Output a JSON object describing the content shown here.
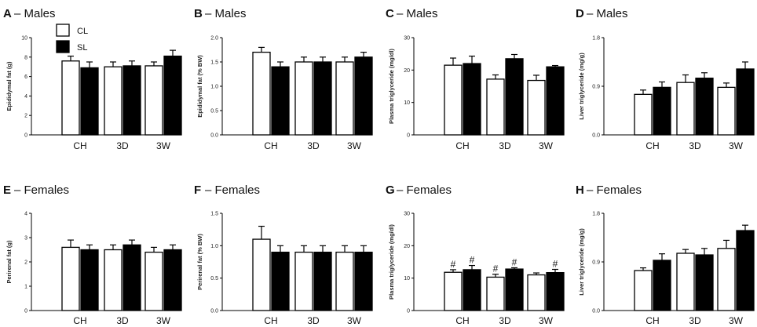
{
  "figure": {
    "legend": {
      "cl": "CL",
      "sl": "SL"
    },
    "colors": {
      "cl": "#ffffff",
      "sl": "#000000",
      "axis": "#000000"
    }
  },
  "chart_data": [
    {
      "type": "bar",
      "panel": "A",
      "title": "– Males",
      "ylabel": "Epididymal fat (g)",
      "ylim": [
        0,
        10
      ],
      "yticks": [
        "0",
        "2",
        "4",
        "6",
        "8",
        "10"
      ],
      "categories": [
        "CH",
        "3D",
        "3W"
      ],
      "series": [
        {
          "name": "CL",
          "values": [
            7.6,
            7.0,
            7.1
          ],
          "errors": [
            0.5,
            0.5,
            0.4
          ]
        },
        {
          "name": "SL",
          "values": [
            6.9,
            7.1,
            8.1
          ],
          "errors": [
            0.6,
            0.5,
            0.6
          ]
        }
      ],
      "significance": []
    },
    {
      "type": "bar",
      "panel": "B",
      "title": "– Males",
      "ylabel": "Epididymal fat (% BW)",
      "ylim": [
        0,
        2.0
      ],
      "yticks": [
        "0.0",
        "0.5",
        "1.0",
        "1.5",
        "2.0"
      ],
      "categories": [
        "CH",
        "3D",
        "3W"
      ],
      "series": [
        {
          "name": "CL",
          "values": [
            1.7,
            1.5,
            1.5
          ],
          "errors": [
            0.1,
            0.1,
            0.1
          ]
        },
        {
          "name": "SL",
          "values": [
            1.4,
            1.5,
            1.6
          ],
          "errors": [
            0.1,
            0.1,
            0.1
          ]
        }
      ],
      "significance": []
    },
    {
      "type": "bar",
      "panel": "C",
      "title": "– Males",
      "ylabel": "Plasma triglyceride (mg/dl)",
      "ylim": [
        0,
        30
      ],
      "yticks": [
        "0",
        "10",
        "20",
        "30"
      ],
      "categories": [
        "CH",
        "3D",
        "3W"
      ],
      "series": [
        {
          "name": "CL",
          "values": [
            21.5,
            17.2,
            16.8
          ],
          "errors": [
            2.2,
            1.3,
            1.6
          ]
        },
        {
          "name": "SL",
          "values": [
            22.0,
            23.5,
            21.0
          ],
          "errors": [
            2.3,
            1.3,
            0.4
          ]
        }
      ],
      "significance": []
    },
    {
      "type": "bar",
      "panel": "D",
      "title": "– Males",
      "ylabel": "Liver triglyceride (mg/g)",
      "ylim": [
        0,
        1.8
      ],
      "yticks": [
        "0.0",
        "0.9",
        "1.8"
      ],
      "categories": [
        "CH",
        "3D",
        "3W"
      ],
      "series": [
        {
          "name": "CL",
          "values": [
            0.75,
            0.97,
            0.88
          ],
          "errors": [
            0.08,
            0.14,
            0.08
          ]
        },
        {
          "name": "SL",
          "values": [
            0.88,
            1.05,
            1.22
          ],
          "errors": [
            0.1,
            0.1,
            0.13
          ]
        }
      ],
      "significance": []
    },
    {
      "type": "bar",
      "panel": "E",
      "title": "– Females",
      "ylabel": "Perirenal fat (g)",
      "ylim": [
        0,
        4
      ],
      "yticks": [
        "0",
        "1",
        "2",
        "3",
        "4"
      ],
      "categories": [
        "CH",
        "3D",
        "3W"
      ],
      "series": [
        {
          "name": "CL",
          "values": [
            2.6,
            2.5,
            2.4
          ],
          "errors": [
            0.3,
            0.2,
            0.2
          ]
        },
        {
          "name": "SL",
          "values": [
            2.5,
            2.7,
            2.5
          ],
          "errors": [
            0.2,
            0.2,
            0.2
          ]
        }
      ],
      "significance": []
    },
    {
      "type": "bar",
      "panel": "F",
      "title": "– Females",
      "ylabel": "Perirenal fat (% BW)",
      "ylim": [
        0,
        1.5
      ],
      "yticks": [
        "0.0",
        "0.5",
        "1.0",
        "1.5"
      ],
      "categories": [
        "CH",
        "3D",
        "3W"
      ],
      "series": [
        {
          "name": "CL",
          "values": [
            1.1,
            0.9,
            0.9
          ],
          "errors": [
            0.2,
            0.1,
            0.1
          ]
        },
        {
          "name": "SL",
          "values": [
            0.9,
            0.9,
            0.9
          ],
          "errors": [
            0.1,
            0.1,
            0.1
          ]
        }
      ],
      "significance": []
    },
    {
      "type": "bar",
      "panel": "G",
      "title": "– Females",
      "ylabel": "Plasma triglyceride (mg/dl)",
      "ylim": [
        0,
        30
      ],
      "yticks": [
        "0",
        "10",
        "20",
        "30"
      ],
      "categories": [
        "CH",
        "3D",
        "3W"
      ],
      "series": [
        {
          "name": "CL",
          "values": [
            11.8,
            10.3,
            11.0
          ],
          "errors": [
            0.8,
            0.9,
            0.6
          ]
        },
        {
          "name": "SL",
          "values": [
            12.6,
            12.8,
            11.7
          ],
          "errors": [
            1.3,
            0.4,
            1.0
          ]
        }
      ],
      "significance": [
        "#",
        "#",
        "#",
        "#",
        "",
        "#"
      ]
    },
    {
      "type": "bar",
      "panel": "H",
      "title": "– Females",
      "ylabel": "Liver triglyceride (mg/g)",
      "ylim": [
        0,
        1.8
      ],
      "yticks": [
        "0.0",
        "0.9",
        "1.8"
      ],
      "categories": [
        "CH",
        "3D",
        "3W"
      ],
      "series": [
        {
          "name": "CL",
          "values": [
            0.74,
            1.06,
            1.15
          ],
          "errors": [
            0.05,
            0.07,
            0.15
          ]
        },
        {
          "name": "SL",
          "values": [
            0.93,
            1.03,
            1.48
          ],
          "errors": [
            0.12,
            0.12,
            0.1
          ]
        }
      ],
      "significance": []
    }
  ]
}
